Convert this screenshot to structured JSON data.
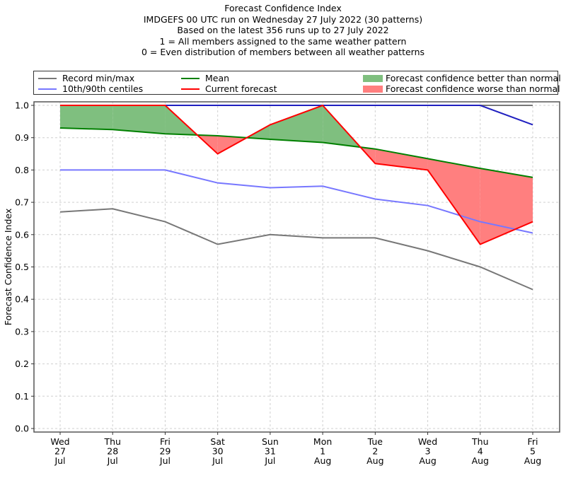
{
  "chart_data": {
    "type": "line",
    "title_lines": [
      "Forecast Confidence Index",
      "IMDGEFS 00 UTC run on Wednesday 27 July 2022 (30 patterns)",
      "Based on the latest 356 runs up to 27 July 2022",
      "1 = All members assigned to the same weather pattern",
      "0 = Even distribution of members between all weather patterns"
    ],
    "ylabel": "Forecast Confidence Index",
    "xlabel": "",
    "ylim": [
      0,
      1
    ],
    "yticks": [
      "0.0",
      "0.1",
      "0.2",
      "0.3",
      "0.4",
      "0.5",
      "0.6",
      "0.7",
      "0.8",
      "0.9",
      "1.0"
    ],
    "grid": true,
    "categories": [
      [
        "Wed",
        "27",
        "Jul"
      ],
      [
        "Thu",
        "28",
        "Jul"
      ],
      [
        "Fri",
        "29",
        "Jul"
      ],
      [
        "Sat",
        "30",
        "Jul"
      ],
      [
        "Sun",
        "31",
        "Jul"
      ],
      [
        "Mon",
        "1",
        "Aug"
      ],
      [
        "Tue",
        "2",
        "Aug"
      ],
      [
        "Wed",
        "3",
        "Aug"
      ],
      [
        "Thu",
        "4",
        "Aug"
      ],
      [
        "Fri",
        "5",
        "Aug"
      ]
    ],
    "series": [
      {
        "name": "Record max",
        "legend": "Record min/max",
        "color": "#777777",
        "values": [
          1.0,
          1.0,
          1.0,
          1.0,
          1.0,
          1.0,
          1.0,
          1.0,
          1.0,
          1.0
        ]
      },
      {
        "name": "Record min",
        "legend": "Record min/max",
        "color": "#777777",
        "values": [
          0.67,
          0.68,
          0.64,
          0.57,
          0.6,
          0.59,
          0.59,
          0.55,
          0.5,
          0.43
        ]
      },
      {
        "name": "90th centile",
        "legend": "10th/90th centiles",
        "color": "#7777ff",
        "values": [
          1.0,
          1.0,
          1.0,
          1.0,
          1.0,
          1.0,
          1.0,
          1.0,
          1.0,
          0.94
        ]
      },
      {
        "name": "10th centile",
        "legend": "10th/90th centiles",
        "color": "#7777ff",
        "values": [
          0.8,
          0.8,
          0.8,
          0.76,
          0.745,
          0.75,
          0.71,
          0.69,
          0.64,
          0.605
        ]
      },
      {
        "name": "Mean",
        "legend": "Mean",
        "color": "#008000",
        "values": [
          0.93,
          0.925,
          0.912,
          0.906,
          0.895,
          0.885,
          0.865,
          0.835,
          0.805,
          0.777
        ]
      },
      {
        "name": "Current forecast",
        "legend": "Current forecast",
        "color": "#ff0000",
        "values": [
          1.0,
          1.0,
          1.0,
          0.85,
          0.94,
          1.0,
          0.82,
          0.8,
          0.57,
          0.64
        ]
      }
    ],
    "fills": {
      "better": {
        "label": "Forecast confidence better than normal",
        "color": "#7fbf7f"
      },
      "worse": {
        "label": "Forecast confidence worse than normal",
        "color": "#ff7f7f"
      }
    },
    "legend": {
      "placement": "top",
      "items": [
        "Record min/max",
        "10th/90th centiles",
        "Mean",
        "Current forecast",
        "Forecast confidence better than normal",
        "Forecast confidence worse than normal"
      ]
    }
  }
}
